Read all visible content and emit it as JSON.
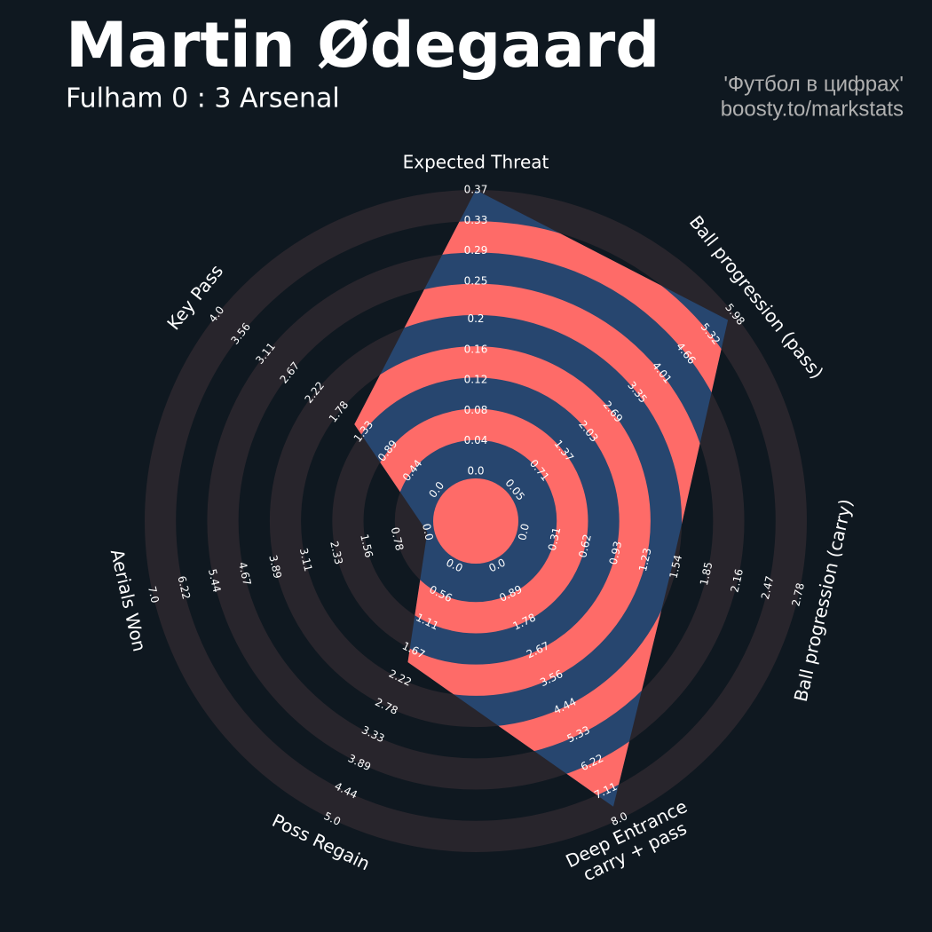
{
  "chart_data": {
    "type": "radar",
    "title": "Martin Ødegaard",
    "subtitle": "Fulham 0 : 3 Arsenal",
    "credits": [
      "'Футбол в цифрах'",
      "boosty.to/markstats"
    ],
    "params": [
      "Expected Threat",
      "Ball progression (pass)",
      "Ball progression (carry)",
      "Deep Entrance\ncarry + pass",
      "Poss Regain",
      "Aerials Won",
      "Key Pass"
    ],
    "values": [
      0.37,
      5.8,
      1.5,
      7.6,
      1.9,
      0,
      1.5
    ],
    "ranges": [
      [
        0,
        0.37
      ],
      [
        0.05,
        5.98
      ],
      [
        0,
        2.78
      ],
      [
        0,
        8
      ],
      [
        0,
        5
      ],
      [
        0,
        7
      ],
      [
        0,
        4
      ]
    ],
    "ticks": [
      [
        {
          "value": 0,
          "label": "0.0"
        },
        0.04,
        0.08,
        0.12,
        0.16,
        0.2,
        0.25,
        0.29,
        0.33,
        0.37
      ],
      [
        0.05,
        0.71,
        1.37,
        2.03,
        2.69,
        3.35,
        4.01,
        4.66,
        5.32,
        5.98
      ],
      [
        {
          "value": 0,
          "label": "0.0"
        },
        0.31,
        0.62,
        0.93,
        1.23,
        1.54,
        1.85,
        2.16,
        2.47,
        2.78
      ],
      [
        {
          "value": 0,
          "label": "0.0"
        },
        0.89,
        1.78,
        2.67,
        3.56,
        4.44,
        5.33,
        6.22,
        7.11,
        {
          "value": 8,
          "label": "8.0"
        }
      ],
      [
        {
          "value": 0,
          "label": "0.0"
        },
        0.56,
        1.11,
        1.67,
        2.22,
        2.78,
        3.33,
        3.89,
        4.44,
        {
          "value": 5,
          "label": "5.0"
        }
      ],
      [
        {
          "value": 0,
          "label": "0.0"
        },
        0.78,
        1.56,
        2.33,
        3.11,
        3.89,
        4.67,
        5.44,
        6.22,
        {
          "value": 7,
          "label": "7.0"
        }
      ],
      [
        {
          "value": 0,
          "label": "0.0"
        },
        0.44,
        0.89,
        1.33,
        1.78,
        2.22,
        2.67,
        3.11,
        3.56,
        {
          "value": 4,
          "label": "4.0"
        }
      ]
    ],
    "color": "#27466f",
    "ring_color": "#fe6b68"
  }
}
